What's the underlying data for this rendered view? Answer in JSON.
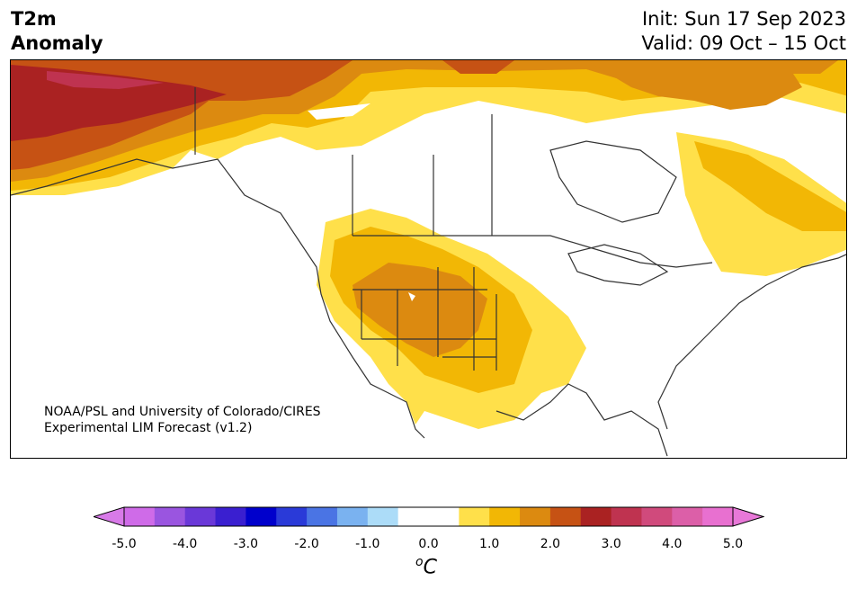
{
  "title": {
    "left_line1": "T2m",
    "left_line2": "Anomaly",
    "right_line1": "Init: Sun 17 Sep 2023",
    "right_line2": "Valid: 09 Oct – 15 Oct"
  },
  "credit": {
    "line1": "NOAA/PSL and University of Colorado/CIRES",
    "line2": "Experimental LIM Forecast (v1.2)"
  },
  "colorbar": {
    "ticks": [
      "-5.0",
      "-4.0",
      "-3.0",
      "-2.0",
      "-1.0",
      "0.0",
      "1.0",
      "2.0",
      "3.0",
      "4.0",
      "5.0"
    ],
    "unit_super": "o",
    "unit_main": "C",
    "colors": [
      "#cf6be8",
      "#9a55e0",
      "#6a38d8",
      "#3a1fd0",
      "#0000cc",
      "#2a3ad8",
      "#4a74e4",
      "#7ab2f0",
      "#acdcf8",
      "#ffffff",
      "#ffffff",
      "#ffe04a",
      "#f2b705",
      "#dc8a10",
      "#c65214",
      "#aa2222",
      "#bf3350",
      "#d04a7c",
      "#dc5fa8",
      "#e870d0"
    ],
    "under_color": "#d87ae8",
    "over_color": "#e878d8"
  },
  "map": {
    "region": "North America",
    "colors": {
      "pale_yellow": "#ffe04a",
      "yellow": "#f2b705",
      "orange": "#dc8a10",
      "dark_orange": "#c65214",
      "red": "#aa2222",
      "crimson": "#bf3350",
      "border": "#333333"
    }
  }
}
